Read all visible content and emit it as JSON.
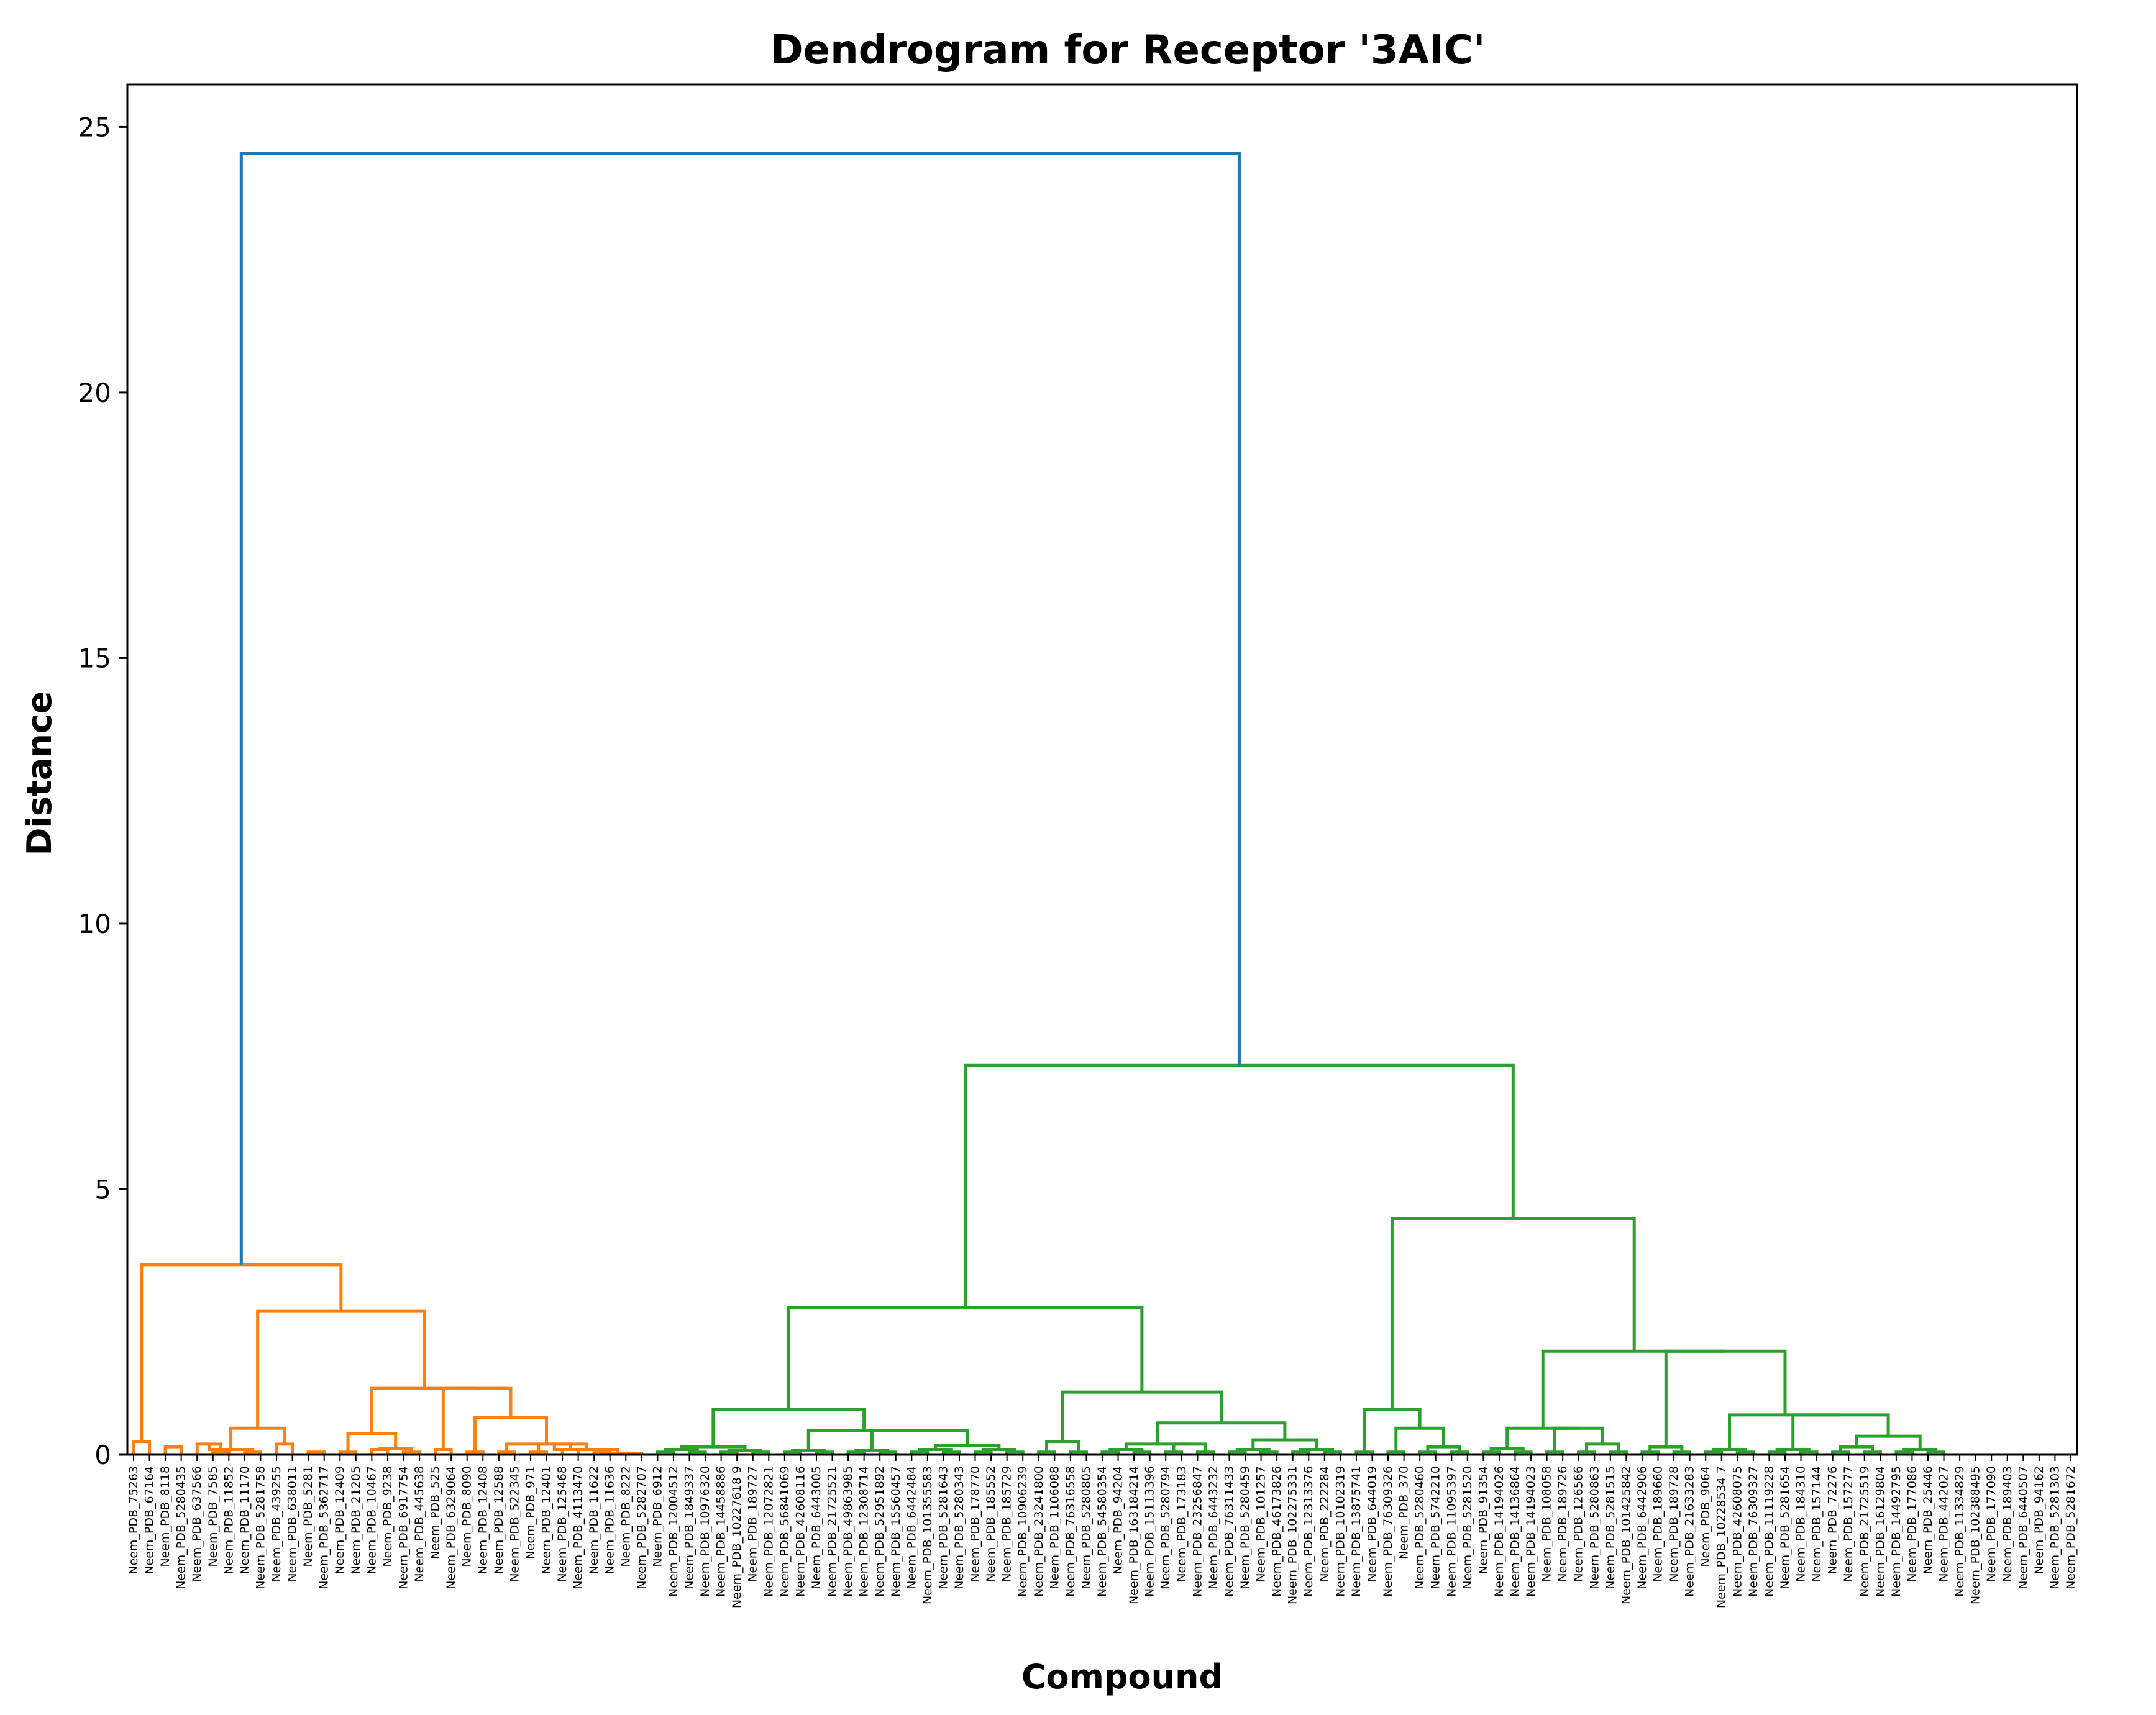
{
  "chart_data": {
    "type": "dendrogram",
    "title": "Dendrogram for Receptor '3AIC'",
    "xlabel": "Compound",
    "ylabel": "Distance",
    "ylim": [
      0,
      25.8
    ],
    "yticks": [
      0,
      5,
      10,
      15,
      20,
      25
    ],
    "grid": false,
    "legend": "none",
    "colors": {
      "blue": "#1f77b4",
      "orange": "#ff7f0e",
      "green": "#2ca02c",
      "axis": "#000000"
    },
    "leaves": [
      "Neem_PDB_75263",
      "Neem_PDB_67164",
      "Neem_PDB_8118",
      "Neem_PDB_5280435",
      "Neem_PDB_637566",
      "Neem_PDB_7585",
      "Neem_PDB_11852",
      "Neem_PDB_11170",
      "Neem_PDB_5281758",
      "Neem_PDB_439255",
      "Neem_PDB_638011",
      "Neem_PDB_5281",
      "Neem_PDB_5362717",
      "Neem_PDB_12409",
      "Neem_PDB_21205",
      "Neem_PDB_10467",
      "Neem_PDB_9238",
      "Neem_PDB_6917754",
      "Neem_PDB_445638",
      "Neem_PDB_525",
      "Neem_PDB_6329064",
      "Neem_PDB_8090",
      "Neem_PDB_12408",
      "Neem_PDB_12588",
      "Neem_PDB_522345",
      "Neem_PDB_971",
      "Neem_PDB_12401",
      "Neem_PDB_125468",
      "Neem_PDB_4113470",
      "Neem_PDB_11622",
      "Neem_PDB_11636",
      "Neem_PDB_8222",
      "Neem_PDB_5282707",
      "Neem_PDB_6912",
      "Neem_PDB_12004512",
      "Neem_PDB_1849337",
      "Neem_PDB_10976320",
      "Neem_PDB_14458886",
      "Neem_PDB_10227618 9",
      "Neem_PDB_189727",
      "Neem_PDB_12072821",
      "Neem_PDB_56841069",
      "Neem_PDB_42608116",
      "Neem_PDB_6443005",
      "Neem_PDB_21725521",
      "Neem_PDB_49863985",
      "Neem_PDB_12308714",
      "Neem_PDB_52951892",
      "Neem_PDB_15560457",
      "Neem_PDB_6442484",
      "Neem_PDB_101355583",
      "Neem_PDB_5281643",
      "Neem_PDB_5280343",
      "Neem_PDB_178770",
      "Neem_PDB_185552",
      "Neem_PDB_185729",
      "Neem_PDB_10906239",
      "Neem_PDB_23241800",
      "Neem_PDB_1106088",
      "Neem_PDB_76316558",
      "Neem_PDB_5280805",
      "Neem_PDB_54580354",
      "Neem_PDB_94204",
      "Neem_PDB_163184214",
      "Neem_PDB_15113396",
      "Neem_PDB_5280794",
      "Neem_PDB_173183",
      "Neem_PDB_23256847",
      "Neem_PDB_6443232",
      "Neem_PDB_76311433",
      "Neem_PDB_5280459",
      "Neem_PDB_101257",
      "Neem_PDB_46173826",
      "Neem_PDB_102275331",
      "Neem_PDB_12313376",
      "Neem_PDB_222284",
      "Neem_PDB_10102319",
      "Neem_PDB_13875741",
      "Neem_PDB_644019",
      "Neem_PDB_76309326",
      "Neem_PDB_370",
      "Neem_PDB_5280460",
      "Neem_PDB_5742210",
      "Neem_PDB_11095397",
      "Neem_PDB_5281520",
      "Neem_PDB_91354",
      "Neem_PDB_14194026",
      "Neem_PDB_14136864",
      "Neem_PDB_14194023",
      "Neem_PDB_108058",
      "Neem_PDB_189726",
      "Neem_PDB_126566",
      "Neem_PDB_5280863",
      "Neem_PDB_5281515",
      "Neem_PDB_101425842",
      "Neem_PDB_6442906",
      "Neem_PDB_189660",
      "Neem_PDB_189728",
      "Neem_PDB_21633283",
      "Neem_PDB_9064",
      "Neem_PDB_10228534 7",
      "Neem_PDB_42608075",
      "Neem_PDB_76309327",
      "Neem_PDB_11119228",
      "Neem_PDB_5281654",
      "Neem_PDB_184310",
      "Neem_PDB_157144",
      "Neem_PDB_72276",
      "Neem_PDB_157277",
      "Neem_PDB_21725519",
      "Neem_PDB_16129804",
      "Neem_PDB_14492795",
      "Neem_PDB_177086",
      "Neem_PDB_25446",
      "Neem_PDB_442027",
      "Neem_PDB_11334829",
      "Neem_PDB_102388495",
      "Neem_PDB_177090",
      "Neem_PDB_189403",
      "Neem_PDB_6440507",
      "Neem_PDB_94162",
      "Neem_PDB_5281303",
      "Neem_PDB_5281672"
    ],
    "merges": [
      {
        "left": 0,
        "right": 1,
        "height": 0.25,
        "color": "orange"
      },
      {
        "left": 2,
        "right": 3,
        "height": 0.15,
        "color": "orange"
      },
      {
        "left": 5,
        "right": 6,
        "height": 0.05,
        "color": "orange"
      },
      {
        "left": 4,
        "right": 5.5,
        "height": 0.2,
        "color": "orange"
      },
      {
        "left": 7,
        "right": 8,
        "height": 0.05,
        "color": "orange"
      },
      {
        "left": 9,
        "right": 10,
        "height": 0.2,
        "color": "orange"
      },
      {
        "left": 4.75,
        "right": 7.5,
        "height": 0.1,
        "color": "orange"
      },
      {
        "left": 6.125,
        "right": 9.5,
        "height": 0.5,
        "color": "orange"
      },
      {
        "left": 11,
        "right": 12,
        "height": 0.05,
        "color": "orange"
      },
      {
        "left": 13,
        "right": 14,
        "height": 0.05,
        "color": "orange"
      },
      {
        "left": 15,
        "right": 16,
        "height": 0.1,
        "color": "orange"
      },
      {
        "left": 17,
        "right": 18,
        "height": 0.05,
        "color": "orange"
      },
      {
        "left": 15.5,
        "right": 17.5,
        "height": 0.12,
        "color": "orange"
      },
      {
        "left": 13.5,
        "right": 16.5,
        "height": 0.4,
        "color": "orange"
      },
      {
        "left": 19,
        "right": 20,
        "height": 0.1,
        "color": "orange"
      },
      {
        "left": 21,
        "right": 22,
        "height": 0.05,
        "color": "orange"
      },
      {
        "left": 23,
        "right": 24,
        "height": 0.05,
        "color": "orange"
      },
      {
        "left": 25,
        "right": 26,
        "height": 0.05,
        "color": "orange"
      },
      {
        "left": 27,
        "right": 28,
        "height": 0.1,
        "color": "orange"
      },
      {
        "left": 25.5,
        "right": 27.5,
        "height": 0.2,
        "color": "orange"
      },
      {
        "left": 29,
        "right": 30,
        "height": 0.05,
        "color": "orange"
      },
      {
        "left": 31,
        "right": 32,
        "height": 0.02,
        "color": "orange"
      },
      {
        "left": 29.5,
        "right": 31.5,
        "height": 0.03,
        "color": "orange"
      },
      {
        "left": 26.5,
        "right": 30.5,
        "height": 0.1,
        "color": "orange"
      },
      {
        "left": 23.5,
        "right": 28.5,
        "height": 0.2,
        "color": "orange"
      },
      {
        "left": 21.5,
        "right": 26,
        "height": 0.7,
        "color": "orange"
      },
      {
        "left": 19.5,
        "right": 23.75,
        "height": 1.25,
        "color": "orange"
      },
      {
        "left": 15,
        "right": 21.625,
        "height": 1.25,
        "color": "orange"
      },
      {
        "left": 7.8125,
        "right": 18.3125,
        "height": 2.7,
        "color": "orange"
      },
      {
        "left": 0.5,
        "right": 13.0625,
        "height": 3.58,
        "color": "orange"
      },
      {
        "left": 33,
        "right": 34,
        "height": 0.05,
        "color": "green"
      },
      {
        "left": 35,
        "right": 36,
        "height": 0.05,
        "color": "green"
      },
      {
        "left": 33.5,
        "right": 35.5,
        "height": 0.1,
        "color": "green"
      },
      {
        "left": 37,
        "right": 38,
        "height": 0.05,
        "color": "green"
      },
      {
        "left": 39,
        "right": 40,
        "height": 0.05,
        "color": "green"
      },
      {
        "left": 37.5,
        "right": 39.5,
        "height": 0.08,
        "color": "green"
      },
      {
        "left": 34.5,
        "right": 38.5,
        "height": 0.15,
        "color": "green"
      },
      {
        "left": 41,
        "right": 42,
        "height": 0.05,
        "color": "green"
      },
      {
        "left": 43,
        "right": 44,
        "height": 0.05,
        "color": "green"
      },
      {
        "left": 41.5,
        "right": 43.5,
        "height": 0.08,
        "color": "green"
      },
      {
        "left": 45,
        "right": 46,
        "height": 0.05,
        "color": "green"
      },
      {
        "left": 47,
        "right": 48,
        "height": 0.05,
        "color": "green"
      },
      {
        "left": 45.5,
        "right": 47.5,
        "height": 0.08,
        "color": "green"
      },
      {
        "left": 49,
        "right": 50,
        "height": 0.05,
        "color": "green"
      },
      {
        "left": 51,
        "right": 52,
        "height": 0.05,
        "color": "green"
      },
      {
        "left": 49.5,
        "right": 51.5,
        "height": 0.1,
        "color": "green"
      },
      {
        "left": 53,
        "right": 54,
        "height": 0.05,
        "color": "green"
      },
      {
        "left": 55,
        "right": 56,
        "height": 0.05,
        "color": "green"
      },
      {
        "left": 53.5,
        "right": 55.5,
        "height": 0.1,
        "color": "green"
      },
      {
        "left": 50.5,
        "right": 54.5,
        "height": 0.18,
        "color": "green"
      },
      {
        "left": 46.5,
        "right": 52.5,
        "height": 0.45,
        "color": "green"
      },
      {
        "left": 42.5,
        "right": 49.5,
        "height": 0.45,
        "color": "green"
      },
      {
        "left": 36.5,
        "right": 46,
        "height": 0.85,
        "color": "green"
      },
      {
        "left": 57,
        "right": 58,
        "height": 0.05,
        "color": "green"
      },
      {
        "left": 59,
        "right": 60,
        "height": 0.05,
        "color": "green"
      },
      {
        "left": 57.5,
        "right": 59.5,
        "height": 0.25,
        "color": "green"
      },
      {
        "left": 61,
        "right": 62,
        "height": 0.05,
        "color": "green"
      },
      {
        "left": 63,
        "right": 64,
        "height": 0.05,
        "color": "green"
      },
      {
        "left": 61.5,
        "right": 63.5,
        "height": 0.1,
        "color": "green"
      },
      {
        "left": 65,
        "right": 66,
        "height": 0.05,
        "color": "green"
      },
      {
        "left": 67,
        "right": 68,
        "height": 0.05,
        "color": "green"
      },
      {
        "left": 65.5,
        "right": 67.5,
        "height": 0.2,
        "color": "green"
      },
      {
        "left": 62.5,
        "right": 66.5,
        "height": 0.2,
        "color": "green"
      },
      {
        "left": 69,
        "right": 70,
        "height": 0.05,
        "color": "green"
      },
      {
        "left": 71,
        "right": 72,
        "height": 0.05,
        "color": "green"
      },
      {
        "left": 69.5,
        "right": 71.5,
        "height": 0.1,
        "color": "green"
      },
      {
        "left": 73,
        "right": 74,
        "height": 0.05,
        "color": "green"
      },
      {
        "left": 75,
        "right": 76,
        "height": 0.05,
        "color": "green"
      },
      {
        "left": 73.5,
        "right": 75.5,
        "height": 0.1,
        "color": "green"
      },
      {
        "left": 70.5,
        "right": 74.5,
        "height": 0.28,
        "color": "green"
      },
      {
        "left": 64.5,
        "right": 72.5,
        "height": 0.6,
        "color": "green"
      },
      {
        "left": 58.5,
        "right": 68.5,
        "height": 1.18,
        "color": "green"
      },
      {
        "left": 41.25,
        "right": 63.5,
        "height": 2.77,
        "color": "green"
      },
      {
        "left": 77,
        "right": 78,
        "height": 0.05,
        "color": "green"
      },
      {
        "left": 79,
        "right": 80,
        "height": 0.05,
        "color": "green"
      },
      {
        "left": 81,
        "right": 82,
        "height": 0.05,
        "color": "green"
      },
      {
        "left": 83,
        "right": 84,
        "height": 0.05,
        "color": "green"
      },
      {
        "left": 81.5,
        "right": 83.5,
        "height": 0.15,
        "color": "green"
      },
      {
        "left": 79.5,
        "right": 82.5,
        "height": 0.5,
        "color": "green"
      },
      {
        "left": 77.5,
        "right": 81,
        "height": 0.85,
        "color": "green"
      },
      {
        "left": 85,
        "right": 86,
        "height": 0.05,
        "color": "green"
      },
      {
        "left": 87,
        "right": 88,
        "height": 0.05,
        "color": "green"
      },
      {
        "left": 85.5,
        "right": 87.5,
        "height": 0.12,
        "color": "green"
      },
      {
        "left": 89,
        "right": 90,
        "height": 0.05,
        "color": "green"
      },
      {
        "left": 91,
        "right": 92,
        "height": 0.05,
        "color": "green"
      },
      {
        "left": 93,
        "right": 94,
        "height": 0.05,
        "color": "green"
      },
      {
        "left": 91.5,
        "right": 93.5,
        "height": 0.2,
        "color": "green"
      },
      {
        "left": 89.5,
        "right": 92.5,
        "height": 0.5,
        "color": "green"
      },
      {
        "left": 86.5,
        "right": 91,
        "height": 0.5,
        "color": "green"
      },
      {
        "left": 95,
        "right": 96,
        "height": 0.05,
        "color": "green"
      },
      {
        "left": 97,
        "right": 98,
        "height": 0.05,
        "color": "green"
      },
      {
        "left": 95.5,
        "right": 97.5,
        "height": 0.15,
        "color": "green"
      },
      {
        "left": 99,
        "right": 100,
        "height": 0.05,
        "color": "green"
      },
      {
        "left": 101,
        "right": 102,
        "height": 0.05,
        "color": "green"
      },
      {
        "left": 99.5,
        "right": 101.5,
        "height": 0.1,
        "color": "green"
      },
      {
        "left": 103,
        "right": 104,
        "height": 0.05,
        "color": "green"
      },
      {
        "left": 105,
        "right": 106,
        "height": 0.05,
        "color": "green"
      },
      {
        "left": 103.5,
        "right": 105.5,
        "height": 0.1,
        "color": "green"
      },
      {
        "left": 107,
        "right": 108,
        "height": 0.05,
        "color": "green"
      },
      {
        "left": 109,
        "right": 110,
        "height": 0.05,
        "color": "green"
      },
      {
        "left": 107.5,
        "right": 109.5,
        "height": 0.15,
        "color": "green"
      },
      {
        "left": 111,
        "right": 112,
        "height": 0.05,
        "color": "green"
      },
      {
        "left": 113,
        "right": 114,
        "height": 0.05,
        "color": "green"
      },
      {
        "left": 111.5,
        "right": 113.5,
        "height": 0.1,
        "color": "green"
      },
      {
        "left": 108.5,
        "right": 112.5,
        "height": 0.35,
        "color": "green"
      },
      {
        "left": 104.5,
        "right": 110.5,
        "height": 0.75,
        "color": "green"
      },
      {
        "left": 100.5,
        "right": 107.5,
        "height": 0.75,
        "color": "green"
      },
      {
        "left": 96.5,
        "right": 104,
        "height": 1.95,
        "color": "green"
      },
      {
        "left": 88.75,
        "right": 100.25,
        "height": 1.95,
        "color": "green"
      },
      {
        "left": 79.25,
        "right": 94.5,
        "height": 4.45,
        "color": "green"
      },
      {
        "left": 52.375,
        "right": 86.875,
        "height": 7.33,
        "color": "green"
      },
      {
        "left": 6.78125,
        "right": 69.625,
        "height": 24.5,
        "color": "blue"
      }
    ]
  }
}
